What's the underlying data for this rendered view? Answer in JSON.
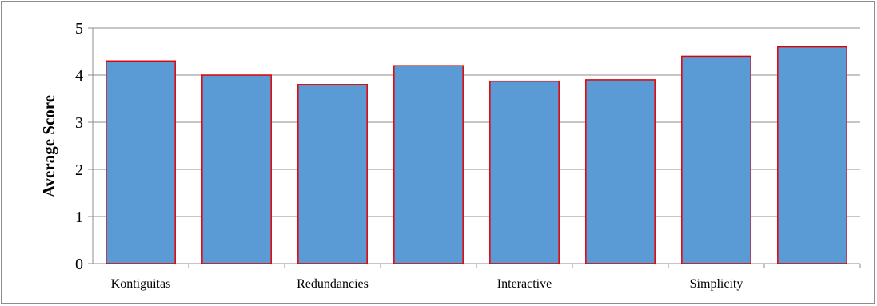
{
  "chart_data": {
    "type": "bar",
    "title": "",
    "xlabel": "",
    "ylabel": "Average Score",
    "ylim": [
      0,
      5
    ],
    "yticks": [
      0,
      1,
      2,
      3,
      4,
      5
    ],
    "grid": true,
    "legend": "none",
    "categories": [
      "Kontiguitas",
      "",
      "Redundancies",
      "",
      "Interactive",
      "",
      "Simplicity",
      ""
    ],
    "values": [
      4.3,
      4.0,
      3.8,
      4.2,
      3.87,
      3.9,
      4.4,
      4.6
    ],
    "colors": {
      "bar_fill": "#5b9bd5",
      "bar_stroke": "#e00000",
      "grid": "#8c8c8c"
    }
  }
}
